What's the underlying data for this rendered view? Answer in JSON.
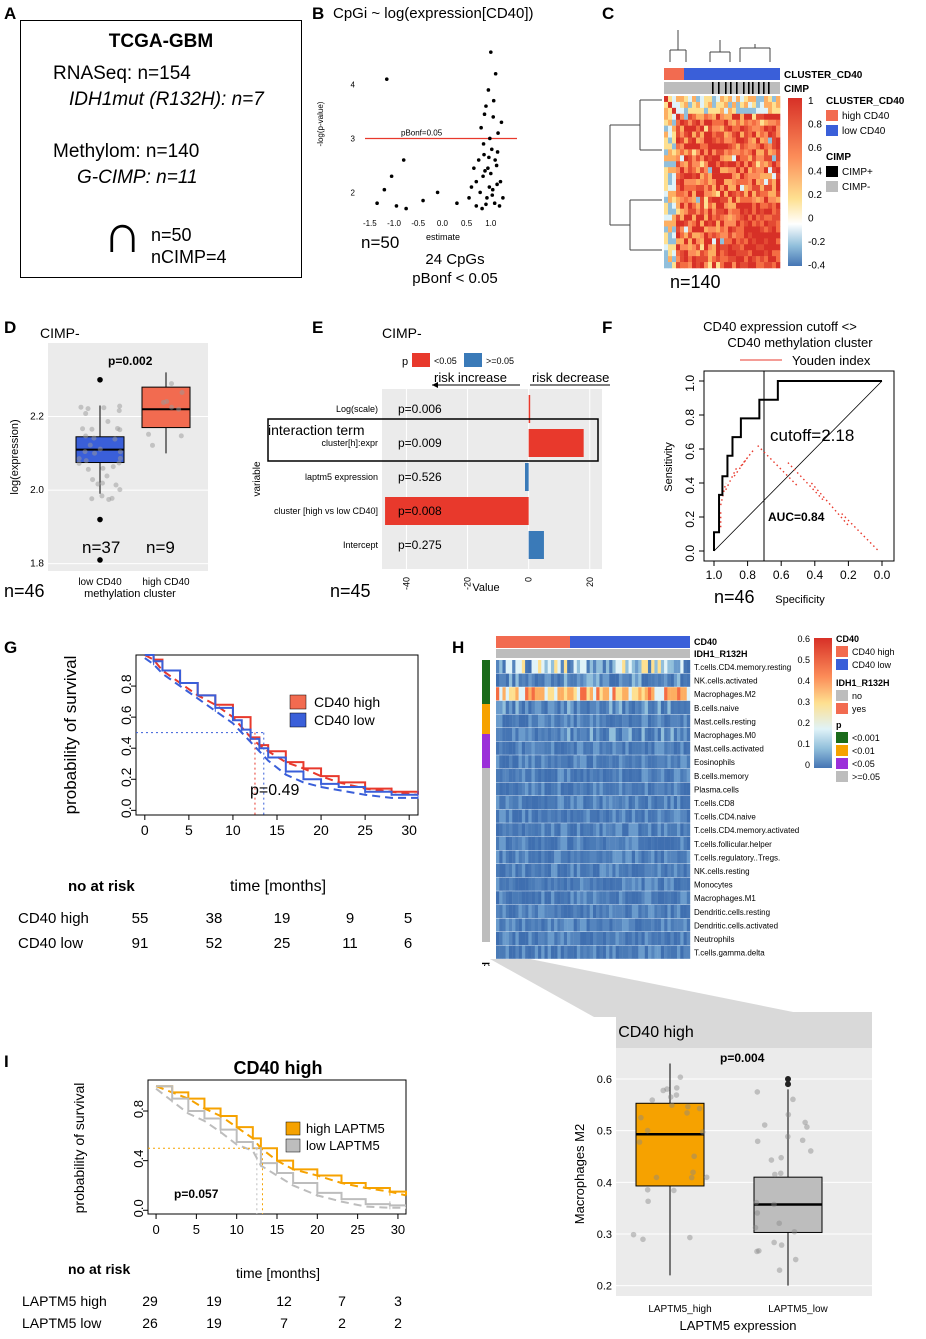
{
  "colors": {
    "red": "#e8392c",
    "blue": "#3a5fd9",
    "orange": "#f6a200",
    "grey": "#bdbdbd",
    "salmon": "#f26b50",
    "panel_bg": "#ebebeb",
    "dotted_red": "#e8392c"
  },
  "panel_labels": {
    "a": "A",
    "b": "B",
    "c": "C",
    "d": "D",
    "e": "E",
    "f": "F",
    "g": "G",
    "h": "H",
    "i": "I"
  },
  "panelA": {
    "title": "TCGA-GBM",
    "rnaseq": "RNASeq: n=154",
    "idh": "IDH1mut (R132H): n=7",
    "methylom": "Methylom: n=140",
    "gcimp": "G-CIMP: n=11",
    "cap": "∩",
    "n50": "n=50",
    "ncimp": "nCIMP=4"
  },
  "chart_data": [
    {
      "id": "B",
      "type": "scatter",
      "title": "CpGi ~ log(expression[CD40])",
      "xlabel": "estimate",
      "ylabel": "-log(p-value)",
      "xticks": [
        "-1.5",
        "-1.0",
        "-0.5",
        "0.0",
        "0.5",
        "1.0"
      ],
      "yticks": [
        "2",
        "3",
        "4"
      ],
      "xlim": [
        -1.6,
        1.5
      ],
      "ylim": [
        1.6,
        4.9
      ],
      "threshold": {
        "label": "pBonf=0.05",
        "y": 3.0
      },
      "n": "n=50",
      "note1": "24 CpGs",
      "note2": "pBonf < 0.05",
      "points": [
        [
          -1.35,
          1.8
        ],
        [
          -1.2,
          2.05
        ],
        [
          -1.15,
          4.1
        ],
        [
          -1.05,
          2.3
        ],
        [
          -0.95,
          1.75
        ],
        [
          -0.8,
          2.6
        ],
        [
          -0.75,
          1.7
        ],
        [
          -0.4,
          1.85
        ],
        [
          -0.1,
          2.0
        ],
        [
          0.3,
          1.8
        ],
        [
          0.55,
          1.9
        ],
        [
          0.7,
          2.2
        ],
        [
          0.75,
          2.6
        ],
        [
          0.8,
          3.2
        ],
        [
          0.82,
          1.7
        ],
        [
          0.85,
          2.9
        ],
        [
          0.88,
          2.4
        ],
        [
          0.9,
          3.6
        ],
        [
          0.92,
          1.9
        ],
        [
          0.95,
          3.9
        ],
        [
          0.97,
          2.1
        ],
        [
          1.0,
          4.6
        ],
        [
          1.02,
          2.8
        ],
        [
          1.05,
          3.4
        ],
        [
          1.08,
          1.8
        ],
        [
          1.1,
          4.2
        ],
        [
          1.12,
          2.5
        ],
        [
          1.15,
          3.1
        ],
        [
          1.2,
          2.2
        ],
        [
          1.25,
          1.9
        ],
        [
          0.7,
          1.75
        ],
        [
          0.78,
          2.0
        ],
        [
          0.84,
          2.3
        ],
        [
          0.86,
          2.7
        ],
        [
          0.94,
          2.45
        ],
        [
          0.98,
          3.0
        ],
        [
          1.04,
          2.05
        ],
        [
          1.06,
          3.7
        ],
        [
          1.14,
          2.75
        ],
        [
          1.18,
          1.75
        ],
        [
          0.6,
          2.1
        ],
        [
          0.65,
          2.45
        ],
        [
          0.9,
          1.78
        ],
        [
          1.0,
          2.35
        ],
        [
          1.03,
          1.95
        ],
        [
          1.09,
          2.6
        ],
        [
          1.22,
          3.3
        ],
        [
          0.87,
          3.45
        ],
        [
          0.96,
          2.65
        ],
        [
          1.13,
          2.15
        ]
      ]
    },
    {
      "id": "C",
      "type": "heatmap",
      "legend_title_cluster": "CLUSTER_CD40",
      "legend_high": "high CD40",
      "legend_low": "low CD40",
      "legend_title_cimp": "CIMP",
      "legend_cimp_pos": "CIMP+",
      "legend_cimp_neg": "CIMP-",
      "track1": "CLUSTER_CD40",
      "track2": "CIMP",
      "scale_ticks": [
        "1",
        "0.8",
        "0.6",
        "0.4",
        "0.2",
        "0",
        "-0.2",
        "-0.4"
      ],
      "n": "n=140"
    },
    {
      "id": "D",
      "type": "box",
      "title": "CIMP-",
      "ylabel": "log(expression)",
      "xlabel": "methylation cluster",
      "categories": [
        "low CD40",
        "high CD40"
      ],
      "yticks": [
        "1.8",
        "2.0",
        "2.2"
      ],
      "ylim": [
        1.78,
        2.4
      ],
      "p": "p=0.002",
      "n_low": "n=37",
      "n_high": "n=9",
      "n": "n=46",
      "series": [
        {
          "name": "low CD40",
          "q1": 2.075,
          "median": 2.11,
          "q3": 2.145,
          "min": 1.99,
          "max": 2.23
        },
        {
          "name": "high CD40",
          "q1": 2.17,
          "median": 2.22,
          "q3": 2.28,
          "min": 2.1,
          "max": 2.32
        }
      ]
    },
    {
      "id": "E",
      "type": "bar",
      "title": "CIMP-",
      "legend_p": "p",
      "legend_sig": "<0.05",
      "legend_ns": ">=0.05",
      "arrow_left": "risk increase",
      "arrow_right": "risk decrease",
      "highlight": "interaction term",
      "ylabel": "variable",
      "xlabel": "Value",
      "xticks": [
        "-40",
        "-20",
        "0",
        "20"
      ],
      "xlim": [
        -48,
        24
      ],
      "n": "n=45",
      "categories": [
        "Log(scale)",
        "cluster[h]:expr",
        "laptm5 expression",
        "cluster [high vs low CD40]",
        "Intercept"
      ],
      "values": [
        0.5,
        18,
        -1.2,
        -47,
        5
      ],
      "pvals": [
        "p=0.006",
        "p=0.009",
        "p=0.526",
        "p=0.008",
        "p=0.275"
      ]
    },
    {
      "id": "F",
      "type": "line",
      "title1": "CD40 expression cutoff <>",
      "title2": "CD40 methylation cluster",
      "legend": "Youden index",
      "xlabel": "Specificity",
      "ylabel": "Sensitivity",
      "xticks": [
        "1.0",
        "0.8",
        "0.6",
        "0.4",
        "0.2",
        "0.0"
      ],
      "yticks": [
        "0.0",
        "0.2",
        "0.4",
        "0.6",
        "0.8",
        "1.0"
      ],
      "cutoff": "cutoff=2.18",
      "auc": "AUC=0.84",
      "n": "n=46",
      "roc": [
        [
          1.0,
          0.0
        ],
        [
          1.0,
          0.11
        ],
        [
          0.97,
          0.11
        ],
        [
          0.97,
          0.33
        ],
        [
          0.95,
          0.33
        ],
        [
          0.95,
          0.44
        ],
        [
          0.92,
          0.44
        ],
        [
          0.92,
          0.56
        ],
        [
          0.89,
          0.56
        ],
        [
          0.89,
          0.67
        ],
        [
          0.84,
          0.67
        ],
        [
          0.84,
          0.78
        ],
        [
          0.78,
          0.78
        ],
        [
          0.78,
          0.78
        ],
        [
          0.73,
          0.78
        ],
        [
          0.73,
          0.89
        ],
        [
          0.62,
          0.89
        ],
        [
          0.62,
          1.0
        ],
        [
          0.0,
          1.0
        ]
      ]
    },
    {
      "id": "G",
      "type": "line",
      "xlabel": "time [months]",
      "ylabel": "probability of survival",
      "xticks": [
        "0",
        "5",
        "10",
        "15",
        "20",
        "25",
        "30"
      ],
      "yticks": [
        "0.0",
        "0.2",
        "0.4",
        "0.6",
        "0.8"
      ],
      "xlim": [
        -1,
        31
      ],
      "ylim": [
        -0.03,
        1.0
      ],
      "p": "p=0.49",
      "legend": [
        "CD40 high",
        "CD40 low"
      ],
      "series": [
        {
          "name": "CD40 high",
          "values": [
            [
              0,
              1
            ],
            [
              1,
              0.97
            ],
            [
              2,
              0.9
            ],
            [
              4,
              0.82
            ],
            [
              6,
              0.74
            ],
            [
              8,
              0.68
            ],
            [
              10,
              0.6
            ],
            [
              12,
              0.47
            ],
            [
              13,
              0.42
            ],
            [
              14,
              0.38
            ],
            [
              16,
              0.31
            ],
            [
              18,
              0.27
            ],
            [
              20,
              0.22
            ],
            [
              22,
              0.18
            ],
            [
              25,
              0.14
            ],
            [
              28,
              0.12
            ],
            [
              31,
              0.1
            ]
          ]
        },
        {
          "name": "CD40 low",
          "values": [
            [
              0,
              1
            ],
            [
              1,
              0.96
            ],
            [
              2,
              0.9
            ],
            [
              4,
              0.82
            ],
            [
              6,
              0.74
            ],
            [
              8,
              0.66
            ],
            [
              10,
              0.58
            ],
            [
              11,
              0.52
            ],
            [
              12,
              0.46
            ],
            [
              13,
              0.4
            ],
            [
              14,
              0.34
            ],
            [
              16,
              0.25
            ],
            [
              18,
              0.2
            ],
            [
              20,
              0.17
            ],
            [
              22,
              0.15
            ],
            [
              25,
              0.12
            ],
            [
              28,
              0.1
            ],
            [
              31,
              0.1
            ]
          ]
        }
      ],
      "risk_title": "no at risk",
      "risk_rows": [
        {
          "label": "CD40 high",
          "values": [
            "55",
            "38",
            "19",
            "9",
            "5"
          ]
        },
        {
          "label": "CD40 low",
          "values": [
            "91",
            "52",
            "25",
            "11",
            "6"
          ]
        }
      ]
    },
    {
      "id": "H",
      "type": "heatmap",
      "track1": "CD40",
      "track2": "IDH1_R132H",
      "rows": [
        "T.cells.CD4.memory.resting",
        "NK.cells.activated",
        "Macrophages.M2",
        "B.cells.naive",
        "Mast.cells.resting",
        "Macrophages.M0",
        "Mast.cells.activated",
        "Eosinophils",
        "B.cells.memory",
        "Plasma.cells",
        "T.cells.CD8",
        "T.cells.CD4.naive",
        "T.cells.CD4.memory.activated",
        "T.cells.follicular.helper",
        "T.cells.regulatory..Tregs.",
        "NK.cells.resting",
        "Monocytes",
        "Macrophages.M1",
        "Dendritic.cells.resting",
        "Dendritic.cells.activated",
        "Neutrophils",
        "T.cells.gamma.delta"
      ],
      "scale_ticks": [
        "0.6",
        "0.5",
        "0.4",
        "0.3",
        "0.2",
        "0.1",
        "0"
      ],
      "legend_cd40": "CD40",
      "legend_cd40_high": "CD40 high",
      "legend_cd40_low": "CD40 low",
      "legend_idh": "IDH1_R132H",
      "legend_no": "no",
      "legend_yes": "yes",
      "legend_p": "p",
      "legend_p1": "<0.001",
      "legend_p2": "<0.01",
      "legend_p3": "<0.05",
      "legend_p4": ">=0.05",
      "p_axis": "p"
    },
    {
      "id": "H2",
      "type": "box",
      "title": "CD40 high",
      "ylabel": "Macrophages M2",
      "xlabel": "LAPTM5 expression",
      "categories": [
        "LAPTM5_high",
        "LAPTM5_low"
      ],
      "yticks": [
        "0.2",
        "0.3",
        "0.4",
        "0.5",
        "0.6"
      ],
      "ylim": [
        0.18,
        0.66
      ],
      "p": "p=0.004",
      "series": [
        {
          "name": "LAPTM5_high",
          "q1": 0.393,
          "median": 0.493,
          "q3": 0.553,
          "min": 0.22,
          "max": 0.63
        },
        {
          "name": "LAPTM5_low",
          "q1": 0.303,
          "median": 0.357,
          "q3": 0.41,
          "min": 0.2,
          "max": 0.58
        }
      ]
    },
    {
      "id": "I",
      "type": "line",
      "title": "CD40 high",
      "xlabel": "time [months]",
      "ylabel": "probability of survival",
      "xticks": [
        "0",
        "5",
        "10",
        "15",
        "20",
        "25",
        "30"
      ],
      "yticks": [
        "0.0",
        "0.4",
        "0.8"
      ],
      "xlim": [
        -1,
        31
      ],
      "ylim": [
        -0.03,
        1.05
      ],
      "p": "p=0.057",
      "legend": [
        "high LAPTM5",
        "low LAPTM5"
      ],
      "series": [
        {
          "name": "high LAPTM5",
          "values": [
            [
              0,
              1
            ],
            [
              2,
              0.95
            ],
            [
              4,
              0.9
            ],
            [
              6,
              0.82
            ],
            [
              8,
              0.76
            ],
            [
              10,
              0.67
            ],
            [
              12,
              0.58
            ],
            [
              13,
              0.5
            ],
            [
              15,
              0.4
            ],
            [
              17,
              0.33
            ],
            [
              20,
              0.28
            ],
            [
              23,
              0.22
            ],
            [
              26,
              0.18
            ],
            [
              29,
              0.15
            ],
            [
              31,
              0.12
            ]
          ]
        },
        {
          "name": "low LAPTM5",
          "values": [
            [
              0,
              1
            ],
            [
              2,
              0.9
            ],
            [
              4,
              0.8
            ],
            [
              6,
              0.74
            ],
            [
              8,
              0.65
            ],
            [
              10,
              0.55
            ],
            [
              12,
              0.5
            ],
            [
              13,
              0.38
            ],
            [
              15,
              0.3
            ],
            [
              17,
              0.22
            ],
            [
              20,
              0.14
            ],
            [
              23,
              0.09
            ],
            [
              26,
              0.05
            ],
            [
              29,
              0.04
            ],
            [
              31,
              0.04
            ]
          ]
        }
      ],
      "risk_title": "no at risk",
      "risk_rows": [
        {
          "label": "LAPTM5 high",
          "values": [
            "29",
            "19",
            "12",
            "7",
            "3"
          ]
        },
        {
          "label": "LAPTM5 low",
          "values": [
            "26",
            "19",
            "7",
            "2",
            "2"
          ]
        }
      ]
    }
  ]
}
